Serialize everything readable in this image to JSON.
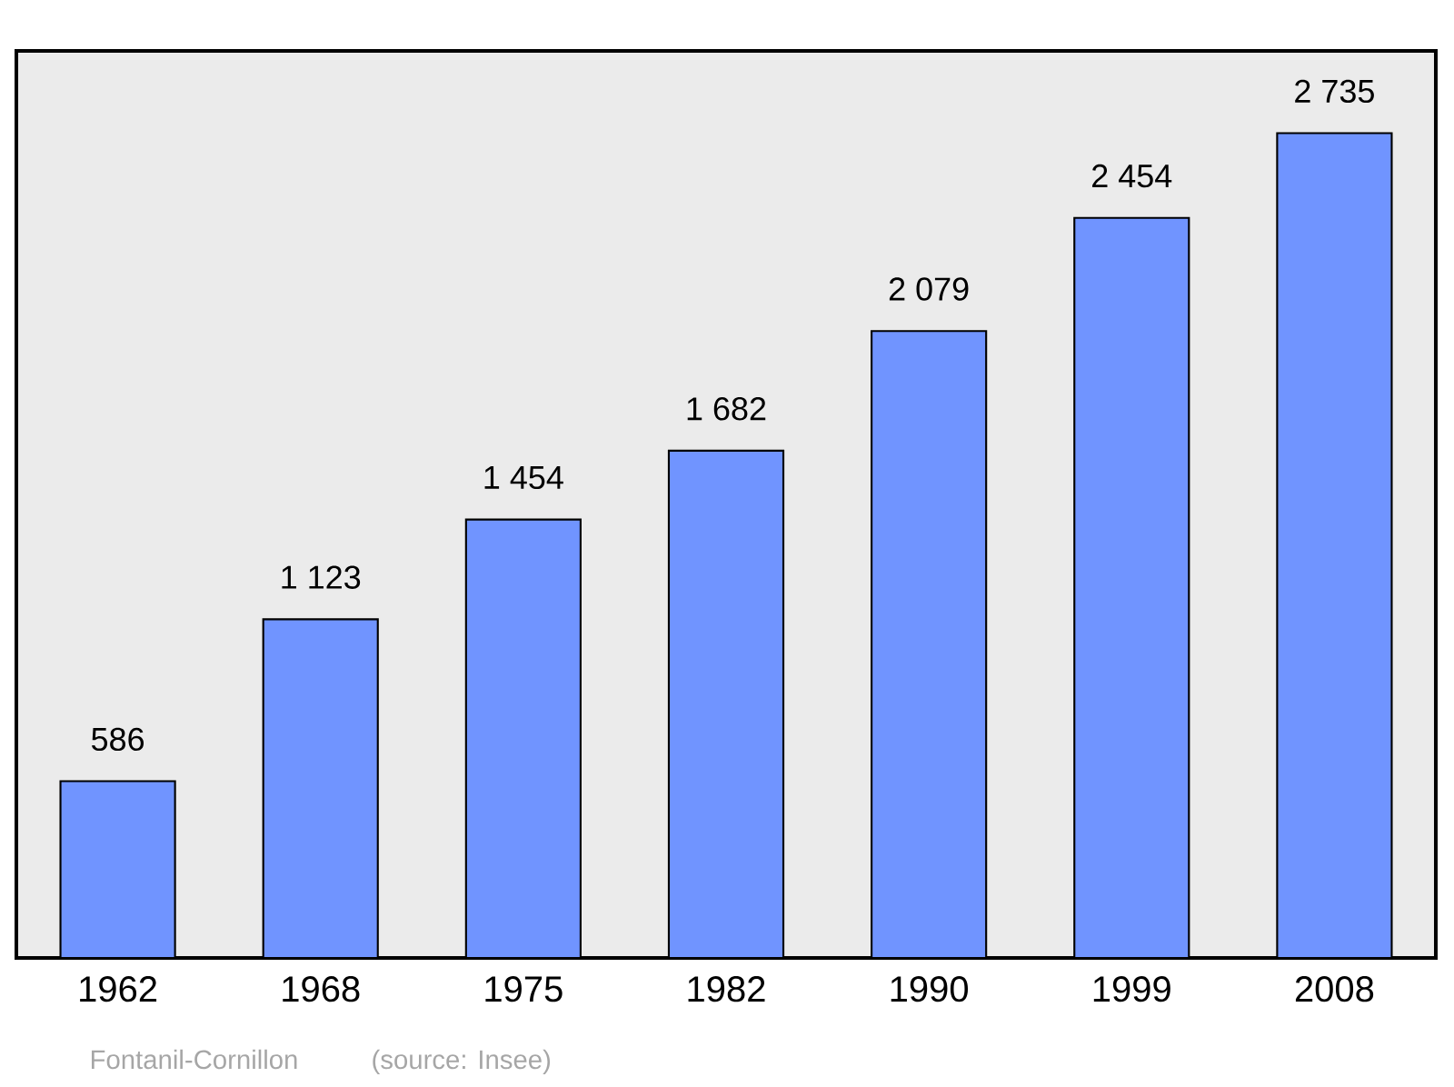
{
  "chart_data": {
    "type": "bar",
    "categories": [
      "1962",
      "1968",
      "1975",
      "1982",
      "1990",
      "1999",
      "2008"
    ],
    "values": [
      586,
      1123,
      1454,
      1682,
      2079,
      2454,
      2735
    ],
    "value_labels": [
      "586",
      "1 123",
      "1 454",
      "1 682",
      "2 079",
      "2 454",
      "2 735"
    ],
    "color": "#7094ff",
    "ylim": [
      0,
      3008
    ],
    "tick_labels": "x",
    "annotations": [
      "Fontanil-Cornillon",
      "(source: Insee)"
    ]
  }
}
